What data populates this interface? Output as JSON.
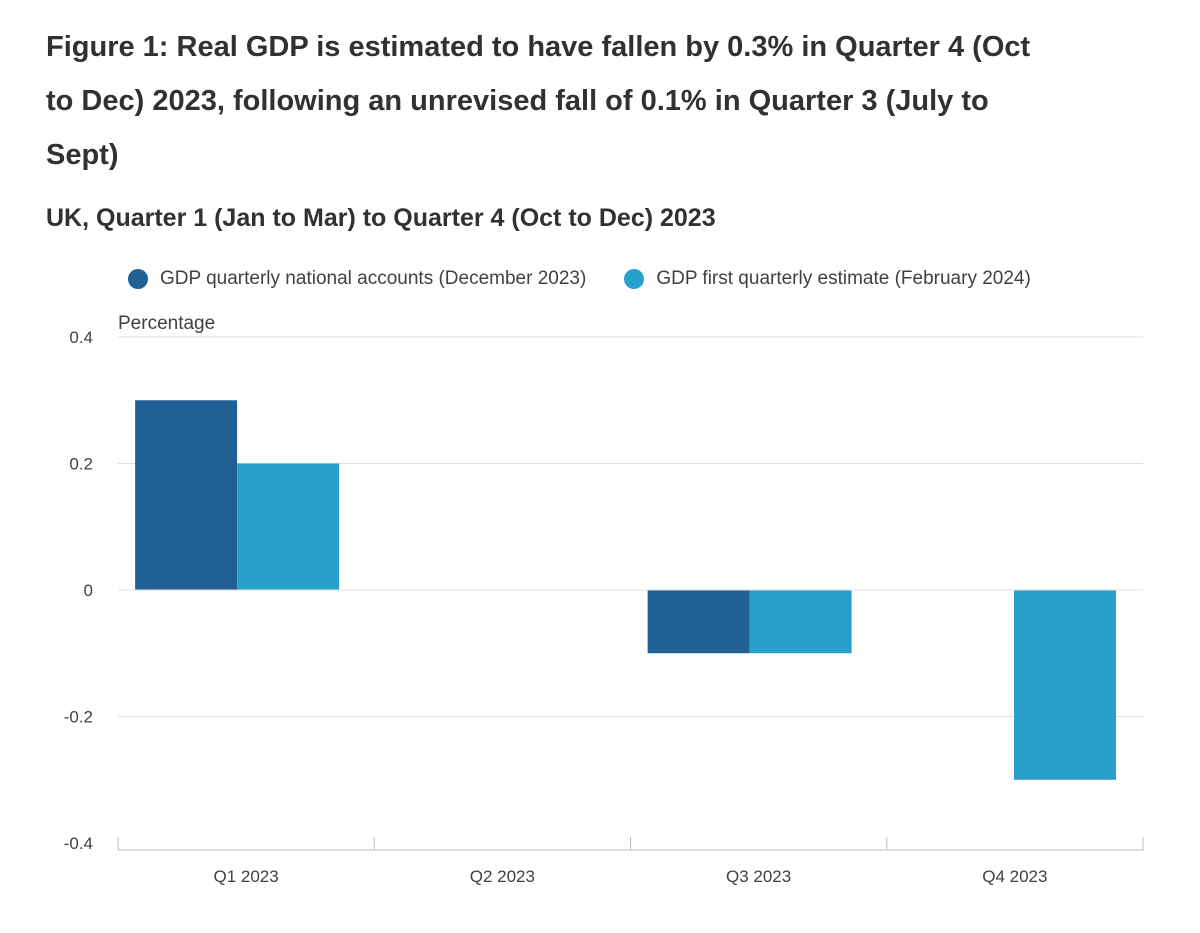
{
  "title": "Figure 1: Real GDP is estimated to have fallen by 0.3% in Quarter 4 (Oct to Dec) 2023, following an unrevised fall of 0.1% in Quarter 3 (July to Sept)",
  "subtitle": "UK, Quarter 1 (Jan to Mar) to Quarter 4 (Oct to Dec) 2023",
  "colors": {
    "series_1": "#206095",
    "series_2": "#27a0cc",
    "grid": "#e0e0e0",
    "axis": "#bcbcbc"
  },
  "chart_data": {
    "type": "bar",
    "title": "Figure 1: Real GDP is estimated to have fallen by 0.3% in Quarter 4 (Oct to Dec) 2023, following an unrevised fall of 0.1% in Quarter 3 (July to Sept)",
    "subtitle": "UK, Quarter 1 (Jan to Mar) to Quarter 4 (Oct to Dec) 2023",
    "ylabel": "Percentage",
    "xlabel": "",
    "ylim": [
      -0.4,
      0.4
    ],
    "yticks": [
      0.4,
      0.2,
      0,
      -0.2,
      -0.4
    ],
    "ytick_labels": [
      "0.4",
      "0.2",
      "0",
      "-0.2",
      "-0.4"
    ],
    "grid": true,
    "legend_position": "top",
    "categories": [
      "Q1 2023",
      "Q2 2023",
      "Q3 2023",
      "Q4 2023"
    ],
    "series": [
      {
        "name": "GDP quarterly national accounts (December 2023)",
        "values": [
          0.3,
          null,
          -0.1,
          null
        ]
      },
      {
        "name": "GDP first quarterly estimate (February 2024)",
        "values": [
          0.2,
          null,
          -0.1,
          -0.3
        ]
      }
    ]
  }
}
